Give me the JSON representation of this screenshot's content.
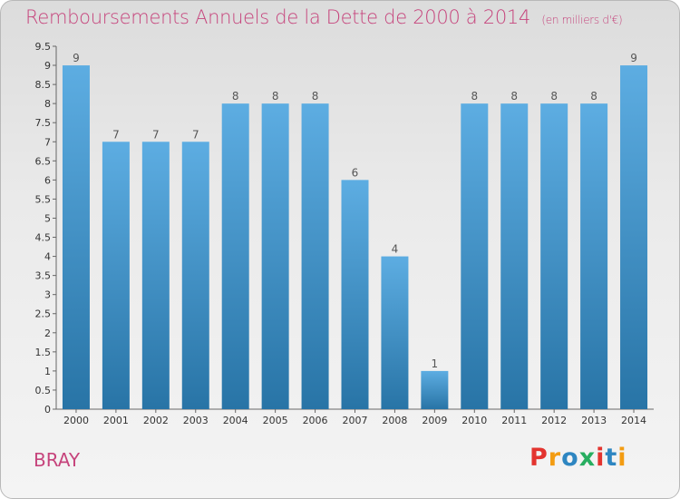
{
  "header": {
    "title": "Remboursements Annuels de la Dette de 2000 à 2014",
    "subtitle": "(en milliers d'€)"
  },
  "footer": {
    "commune": "BRAY",
    "logo_letters": [
      "P",
      "r",
      "o",
      "x",
      "i",
      "t",
      "i"
    ],
    "logo_colors": [
      "#e3342f",
      "#f39c12",
      "#2e86c1",
      "#27ae60",
      "#e3342f",
      "#2e86c1",
      "#f39c12"
    ]
  },
  "colors": {
    "title": "#c6447c",
    "bar_light": "#5dade2",
    "bar_dark": "#2874a6",
    "axis_text": "#333333",
    "value_label": "#555555"
  },
  "chart_data": {
    "type": "bar",
    "title": "Remboursements Annuels de la Dette de 2000 à 2014",
    "subtitle": "(en milliers d'€)",
    "categories": [
      "2000",
      "2001",
      "2002",
      "2003",
      "2004",
      "2005",
      "2006",
      "2007",
      "2008",
      "2009",
      "2010",
      "2011",
      "2012",
      "2013",
      "2014"
    ],
    "values": [
      9,
      7,
      7,
      7,
      8,
      8,
      8,
      6,
      4,
      1,
      8,
      8,
      8,
      8,
      9
    ],
    "data_labels": [
      "9",
      "7",
      "7",
      "7",
      "8",
      "8",
      "8",
      "6",
      "4",
      "1",
      "8",
      "8",
      "8",
      "8",
      "9"
    ],
    "yticks": [
      "0",
      "0.5",
      "1",
      "1.5",
      "2",
      "2.5",
      "3",
      "3.5",
      "4",
      "4.5",
      "5",
      "5.5",
      "6",
      "6.5",
      "7",
      "7.5",
      "8",
      "8.5",
      "9",
      "9.5"
    ],
    "ylim": [
      0,
      9.5
    ],
    "grid": false
  }
}
